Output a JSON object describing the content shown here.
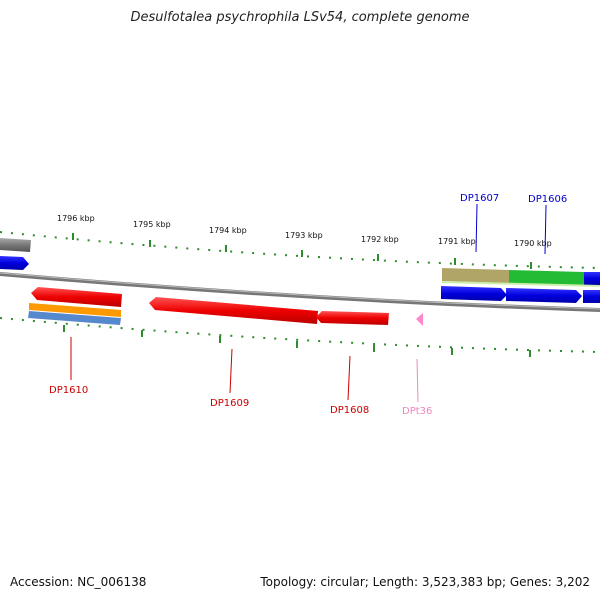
{
  "title": "Desulfotalea psychrophila LSv54, complete genome",
  "accession": "Accession: NC_006138",
  "summary": "Topology: circular; Length: 3,523,383 bp; Genes: 3,202",
  "ticks": [
    "1796 kbp",
    "1795 kbp",
    "1794 kbp",
    "1793 kbp",
    "1792 kbp",
    "1791 kbp",
    "1790 kbp"
  ],
  "genes": {
    "dp1610": "DP1610",
    "dp1609": "DP1609",
    "dp1608": "DP1608",
    "dpt36": "DPt36",
    "dp1607": "DP1607",
    "dp1606": "DP1606"
  },
  "colors": {
    "backbone": "#888888",
    "tick": "#2e8b2e",
    "cds_reverse": "#ee0000",
    "cds_forward": "#0000dd",
    "trna": "#ff88cc",
    "label_reverse": "#cc0000",
    "label_forward": "#0000cc",
    "label_trna": "#ee88bb",
    "olive": "#b0a566",
    "green": "#22bb33",
    "orange": "#ff9900",
    "steel": "#5588cc",
    "gray": "#777777"
  }
}
